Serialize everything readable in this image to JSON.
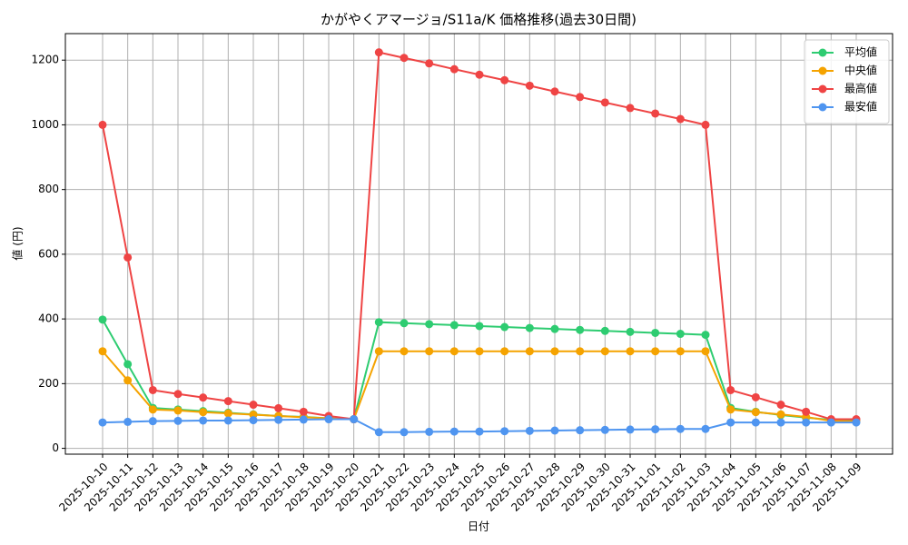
{
  "chart_data": {
    "type": "line",
    "title": "かがやくアマージョ/S11a/K 価格推移(過去30日間)",
    "x_label": "日付",
    "y_label": "値 (円)",
    "categories": [
      "2025-10-10",
      "2025-10-11",
      "2025-10-12",
      "2025-10-13",
      "2025-10-14",
      "2025-10-15",
      "2025-10-16",
      "2025-10-17",
      "2025-10-18",
      "2025-10-19",
      "2025-10-20",
      "2025-10-21",
      "2025-10-22",
      "2025-10-23",
      "2025-10-24",
      "2025-10-25",
      "2025-10-26",
      "2025-10-27",
      "2025-10-28",
      "2025-10-29",
      "2025-10-30",
      "2025-10-31",
      "2025-11-01",
      "2025-11-02",
      "2025-11-03",
      "2025-11-04",
      "2025-11-05",
      "2025-11-06",
      "2025-11-07",
      "2025-11-08",
      "2025-11-09"
    ],
    "series": [
      {
        "name": "平均値",
        "color": "#2ecc71",
        "values": [
          398,
          260,
          125,
          120,
          115,
          110,
          105,
          100,
          97,
          93,
          90,
          390,
          387,
          384,
          381,
          378,
          375,
          372,
          369,
          366,
          363,
          360,
          357,
          354,
          351,
          125,
          113,
          103,
          95,
          88,
          85
        ]
      },
      {
        "name": "中央値",
        "color": "#f5a300",
        "values": [
          300,
          210,
          120,
          117,
          112,
          108,
          104,
          100,
          96,
          93,
          90,
          300,
          300,
          300,
          300,
          300,
          300,
          300,
          300,
          300,
          300,
          300,
          300,
          300,
          300,
          120,
          112,
          105,
          97,
          85,
          83
        ]
      },
      {
        "name": "最高値",
        "color": "#ef4444",
        "values": [
          1000,
          590,
          180,
          168,
          157,
          146,
          135,
          124,
          113,
          100,
          90,
          1224,
          1207,
          1190,
          1172,
          1155,
          1138,
          1121,
          1103,
          1086,
          1069,
          1052,
          1035,
          1018,
          1000,
          180,
          158,
          135,
          113,
          90,
          90
        ]
      },
      {
        "name": "最安値",
        "color": "#4f95f0",
        "values": [
          80,
          82,
          84,
          85,
          86,
          86,
          87,
          88,
          89,
          90,
          90,
          50,
          50,
          51,
          52,
          52,
          53,
          54,
          55,
          56,
          57,
          58,
          59,
          60,
          60,
          80,
          80,
          80,
          80,
          80,
          80
        ]
      }
    ],
    "ylim": [
      -18,
      1282
    ],
    "yticks": [
      0,
      200,
      400,
      600,
      800,
      1000,
      1200
    ],
    "grid": true,
    "legend": "upper right"
  }
}
